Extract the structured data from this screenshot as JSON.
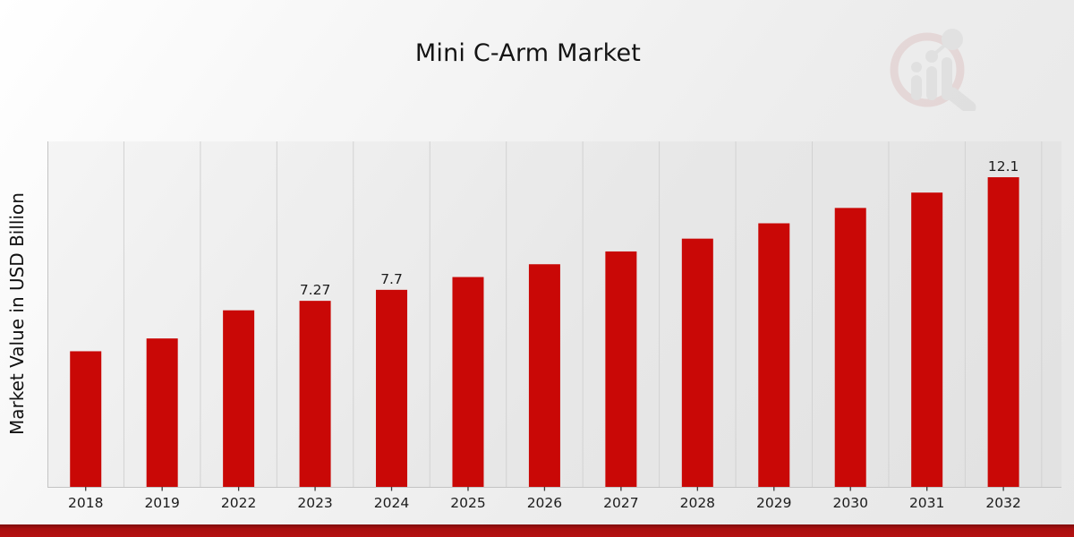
{
  "page": {
    "accent_red": "#b11111",
    "icons": {
      "watermark": "magnifier-bar-chart-logo-icon"
    }
  },
  "chart_data": {
    "type": "bar",
    "title": "Mini C-Arm Market",
    "xlabel": "",
    "ylabel": "Market Value in USD Billion",
    "categories": [
      "2018",
      "2019",
      "2022",
      "2023",
      "2024",
      "2025",
      "2026",
      "2027",
      "2028",
      "2029",
      "2030",
      "2031",
      "2032"
    ],
    "values": [
      5.3,
      5.8,
      6.9,
      7.27,
      7.7,
      8.2,
      8.7,
      9.2,
      9.7,
      10.3,
      10.9,
      11.5,
      12.1
    ],
    "data_labels": [
      "",
      "",
      "",
      "7.27",
      "7.7",
      "",
      "",
      "",
      "",
      "",
      "",
      "",
      "12.1"
    ],
    "ylim": [
      0,
      13.5
    ],
    "grid": "vertical-only",
    "legend": "none",
    "bar_color": "#c90806",
    "gridline_color": "#d2d2d2",
    "spine_color": "#c4c4c4",
    "tick_color": "#3a3a3a",
    "label_color": "#1c1c1c",
    "plot_bg": "rgba(120,120,120,0.055)"
  }
}
